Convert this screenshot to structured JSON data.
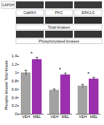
{
  "chart_data": {
    "type": "bar",
    "y_label": "Phospho kinase/ Total kinase",
    "categories": [
      "CaMKII",
      "PKC",
      "ERK1/2"
    ],
    "series": [
      {
        "name": "VEH",
        "color": "#a3a3a3",
        "values": [
          1.0,
          0.58,
          0.68
        ],
        "errors": [
          0.06,
          0.03,
          0.04
        ]
      },
      {
        "name": "MEL",
        "color": "#9c2fae",
        "values": [
          1.32,
          0.95,
          0.85
        ],
        "errors": [
          0.05,
          0.04,
          0.04
        ]
      }
    ],
    "ylim": [
      0,
      1.4
    ],
    "yticks": [
      0,
      0.2,
      0.4,
      0.6,
      0.8,
      1,
      1.2,
      1.4
    ],
    "annotations": [
      {
        "category": "CaMKII",
        "text": "*"
      },
      {
        "category": "PKC",
        "text": "*"
      },
      {
        "category": "ERK1/2",
        "text": "*"
      }
    ],
    "blot": {
      "rows": [
        "GAPDH",
        "Total kinases",
        "Phosphorylated kinases"
      ],
      "columns": [
        "CaMKII",
        "PKC",
        "ERK1/2"
      ]
    }
  }
}
